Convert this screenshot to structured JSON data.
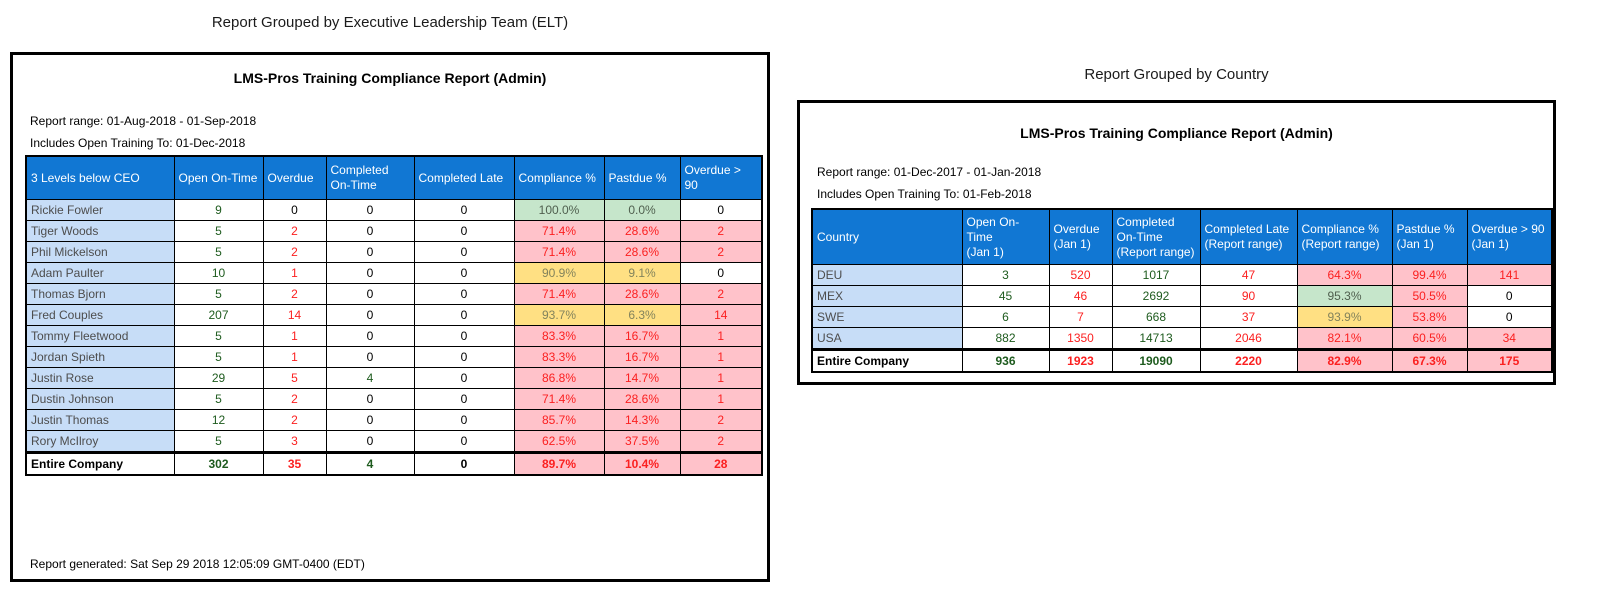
{
  "colors": {
    "header_fill": "#1177d3",
    "header_text": "#ffffff",
    "row_label_fill": "#c7ddf7",
    "row_label_text": "#4d4d4d",
    "good_fill": "#c6e6cb",
    "good_fill_text": "#50604f",
    "warn_fill": "#ffe083",
    "warn_fill_text": "#83835c",
    "bad_fill": "#ffc2ca",
    "bad_text": "#fb2020",
    "good_text": "#1e5b1e",
    "border": "#000000"
  },
  "panels": [
    {
      "group_title": "Report Grouped by Executive Leadership Team (ELT)",
      "report_title": "LMS-Pros Training Compliance Report (Admin)",
      "report_range": "Report range: 01-Aug-2018 - 01-Sep-2018",
      "includes_open": "Includes Open Training To: 01-Dec-2018",
      "footer": "Report generated: Sat Sep 29 2018 12:05:09 GMT-0400 (EDT)",
      "columns": [
        "3 Levels below CEO",
        "Open On-Time",
        "Overdue",
        "Completed\nOn-Time",
        "Completed Late",
        "Compliance %",
        "Pastdue %",
        "Overdue > 90"
      ],
      "rows": [
        {
          "label": "Rickie Fowler",
          "cells": [
            {
              "v": "9",
              "tone": "good"
            },
            {
              "v": "0",
              "tone": "plain"
            },
            {
              "v": "0",
              "tone": "plain"
            },
            {
              "v": "0",
              "tone": "plain"
            },
            {
              "v": "100.0%",
              "tone": "good-fill"
            },
            {
              "v": "0.0%",
              "tone": "good-fill"
            },
            {
              "v": "0",
              "tone": "plain"
            }
          ]
        },
        {
          "label": "Tiger Woods",
          "cells": [
            {
              "v": "5",
              "tone": "good"
            },
            {
              "v": "2",
              "tone": "bad"
            },
            {
              "v": "0",
              "tone": "plain"
            },
            {
              "v": "0",
              "tone": "plain"
            },
            {
              "v": "71.4%",
              "tone": "bad-fill"
            },
            {
              "v": "28.6%",
              "tone": "bad-fill"
            },
            {
              "v": "2",
              "tone": "bad-fill"
            }
          ]
        },
        {
          "label": "Phil Mickelson",
          "cells": [
            {
              "v": "5",
              "tone": "good"
            },
            {
              "v": "2",
              "tone": "bad"
            },
            {
              "v": "0",
              "tone": "plain"
            },
            {
              "v": "0",
              "tone": "plain"
            },
            {
              "v": "71.4%",
              "tone": "bad-fill"
            },
            {
              "v": "28.6%",
              "tone": "bad-fill"
            },
            {
              "v": "2",
              "tone": "bad-fill"
            }
          ]
        },
        {
          "label": "Adam Paulter",
          "cells": [
            {
              "v": "10",
              "tone": "good"
            },
            {
              "v": "1",
              "tone": "bad"
            },
            {
              "v": "0",
              "tone": "plain"
            },
            {
              "v": "0",
              "tone": "plain"
            },
            {
              "v": "90.9%",
              "tone": "warn-fill"
            },
            {
              "v": "9.1%",
              "tone": "warn-fill"
            },
            {
              "v": "0",
              "tone": "plain"
            }
          ]
        },
        {
          "label": "Thomas Bjorn",
          "cells": [
            {
              "v": "5",
              "tone": "good"
            },
            {
              "v": "2",
              "tone": "bad"
            },
            {
              "v": "0",
              "tone": "plain"
            },
            {
              "v": "0",
              "tone": "plain"
            },
            {
              "v": "71.4%",
              "tone": "bad-fill"
            },
            {
              "v": "28.6%",
              "tone": "bad-fill"
            },
            {
              "v": "2",
              "tone": "bad-fill"
            }
          ]
        },
        {
          "label": "Fred Couples",
          "cells": [
            {
              "v": "207",
              "tone": "good"
            },
            {
              "v": "14",
              "tone": "bad"
            },
            {
              "v": "0",
              "tone": "plain"
            },
            {
              "v": "0",
              "tone": "plain"
            },
            {
              "v": "93.7%",
              "tone": "warn-fill"
            },
            {
              "v": "6.3%",
              "tone": "warn-fill"
            },
            {
              "v": "14",
              "tone": "bad-fill"
            }
          ]
        },
        {
          "label": "Tommy Fleetwood",
          "cells": [
            {
              "v": "5",
              "tone": "good"
            },
            {
              "v": "1",
              "tone": "bad"
            },
            {
              "v": "0",
              "tone": "plain"
            },
            {
              "v": "0",
              "tone": "plain"
            },
            {
              "v": "83.3%",
              "tone": "bad-fill"
            },
            {
              "v": "16.7%",
              "tone": "bad-fill"
            },
            {
              "v": "1",
              "tone": "bad-fill"
            }
          ]
        },
        {
          "label": "Jordan Spieth",
          "cells": [
            {
              "v": "5",
              "tone": "good"
            },
            {
              "v": "1",
              "tone": "bad"
            },
            {
              "v": "0",
              "tone": "plain"
            },
            {
              "v": "0",
              "tone": "plain"
            },
            {
              "v": "83.3%",
              "tone": "bad-fill"
            },
            {
              "v": "16.7%",
              "tone": "bad-fill"
            },
            {
              "v": "1",
              "tone": "bad-fill"
            }
          ]
        },
        {
          "label": "Justin Rose",
          "cells": [
            {
              "v": "29",
              "tone": "good"
            },
            {
              "v": "5",
              "tone": "bad"
            },
            {
              "v": "4",
              "tone": "good"
            },
            {
              "v": "0",
              "tone": "plain"
            },
            {
              "v": "86.8%",
              "tone": "bad-fill"
            },
            {
              "v": "14.7%",
              "tone": "bad-fill"
            },
            {
              "v": "1",
              "tone": "bad-fill"
            }
          ]
        },
        {
          "label": "Dustin Johnson",
          "cells": [
            {
              "v": "5",
              "tone": "good"
            },
            {
              "v": "2",
              "tone": "bad"
            },
            {
              "v": "0",
              "tone": "plain"
            },
            {
              "v": "0",
              "tone": "plain"
            },
            {
              "v": "71.4%",
              "tone": "bad-fill"
            },
            {
              "v": "28.6%",
              "tone": "bad-fill"
            },
            {
              "v": "1",
              "tone": "bad-fill"
            }
          ]
        },
        {
          "label": "Justin Thomas",
          "cells": [
            {
              "v": "12",
              "tone": "good"
            },
            {
              "v": "2",
              "tone": "bad"
            },
            {
              "v": "0",
              "tone": "plain"
            },
            {
              "v": "0",
              "tone": "plain"
            },
            {
              "v": "85.7%",
              "tone": "bad-fill"
            },
            {
              "v": "14.3%",
              "tone": "bad-fill"
            },
            {
              "v": "2",
              "tone": "bad-fill"
            }
          ]
        },
        {
          "label": "Rory McIlroy",
          "cells": [
            {
              "v": "5",
              "tone": "good"
            },
            {
              "v": "3",
              "tone": "bad"
            },
            {
              "v": "0",
              "tone": "plain"
            },
            {
              "v": "0",
              "tone": "plain"
            },
            {
              "v": "62.5%",
              "tone": "bad-fill"
            },
            {
              "v": "37.5%",
              "tone": "bad-fill"
            },
            {
              "v": "2",
              "tone": "bad-fill"
            }
          ]
        }
      ],
      "total_row": {
        "label": "Entire Company",
        "cells": [
          {
            "v": "302",
            "tone": "good"
          },
          {
            "v": "35",
            "tone": "bad"
          },
          {
            "v": "4",
            "tone": "good"
          },
          {
            "v": "0",
            "tone": "plain"
          },
          {
            "v": "89.7%",
            "tone": "bad-fill"
          },
          {
            "v": "10.4%",
            "tone": "bad-fill"
          },
          {
            "v": "28",
            "tone": "bad-fill"
          }
        ]
      }
    },
    {
      "group_title": "Report Grouped by Country",
      "report_title": "LMS-Pros Training Compliance Report (Admin)",
      "report_range": "Report range: 01-Dec-2017 - 01-Jan-2018",
      "includes_open": "Includes Open Training To: 01-Feb-2018",
      "footer": "",
      "columns": [
        "Country",
        "Open On-Time\n(Jan 1)",
        "Overdue\n(Jan 1)",
        "Completed\nOn-Time\n(Report range)",
        "Completed Late\n(Report range)",
        "Compliance %\n(Report range)",
        "Pastdue %\n(Jan 1)",
        "Overdue > 90\n(Jan 1)"
      ],
      "rows": [
        {
          "label": "DEU",
          "cells": [
            {
              "v": "3",
              "tone": "good"
            },
            {
              "v": "520",
              "tone": "bad"
            },
            {
              "v": "1017",
              "tone": "good"
            },
            {
              "v": "47",
              "tone": "bad"
            },
            {
              "v": "64.3%",
              "tone": "bad-fill"
            },
            {
              "v": "99.4%",
              "tone": "bad-fill"
            },
            {
              "v": "141",
              "tone": "bad-fill"
            }
          ]
        },
        {
          "label": "MEX",
          "cells": [
            {
              "v": "45",
              "tone": "good"
            },
            {
              "v": "46",
              "tone": "bad"
            },
            {
              "v": "2692",
              "tone": "good"
            },
            {
              "v": "90",
              "tone": "bad"
            },
            {
              "v": "95.3%",
              "tone": "good-fill"
            },
            {
              "v": "50.5%",
              "tone": "bad-fill"
            },
            {
              "v": "0",
              "tone": "plain"
            }
          ]
        },
        {
          "label": "SWE",
          "cells": [
            {
              "v": "6",
              "tone": "good"
            },
            {
              "v": "7",
              "tone": "bad"
            },
            {
              "v": "668",
              "tone": "good"
            },
            {
              "v": "37",
              "tone": "bad"
            },
            {
              "v": "93.9%",
              "tone": "warn-fill"
            },
            {
              "v": "53.8%",
              "tone": "bad-fill"
            },
            {
              "v": "0",
              "tone": "plain"
            }
          ]
        },
        {
          "label": "USA",
          "cells": [
            {
              "v": "882",
              "tone": "good"
            },
            {
              "v": "1350",
              "tone": "bad"
            },
            {
              "v": "14713",
              "tone": "good"
            },
            {
              "v": "2046",
              "tone": "bad"
            },
            {
              "v": "82.1%",
              "tone": "bad-fill"
            },
            {
              "v": "60.5%",
              "tone": "bad-fill"
            },
            {
              "v": "34",
              "tone": "bad-fill"
            }
          ]
        }
      ],
      "total_row": {
        "label": "Entire Company",
        "cells": [
          {
            "v": "936",
            "tone": "good"
          },
          {
            "v": "1923",
            "tone": "bad"
          },
          {
            "v": "19090",
            "tone": "good"
          },
          {
            "v": "2220",
            "tone": "bad"
          },
          {
            "v": "82.9%",
            "tone": "bad-fill"
          },
          {
            "v": "67.3%",
            "tone": "bad-fill"
          },
          {
            "v": "175",
            "tone": "bad-fill"
          }
        ]
      }
    }
  ]
}
